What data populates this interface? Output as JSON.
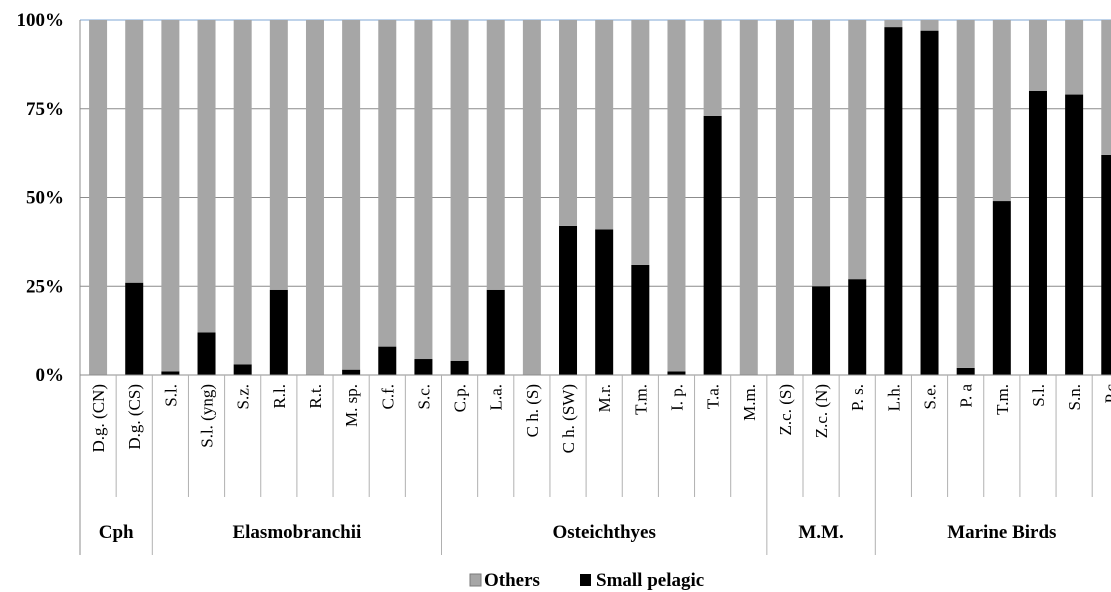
{
  "chart_data": {
    "type": "bar",
    "stacked": true,
    "percent": true,
    "title": "",
    "xlabel": "",
    "ylabel": "",
    "ylim": [
      0,
      100
    ],
    "y_ticks": [
      "0%",
      "25%",
      "50%",
      "75%",
      "100%"
    ],
    "grid": true,
    "legend_position": "bottom",
    "categories": [
      "D.g. (CN)",
      "D.g. (CS)",
      "S.l.",
      "S.l. (yng)",
      "S.z.",
      "R.l.",
      "R.t.",
      "M. sp.",
      "C.f.",
      "S.c.",
      "C.p.",
      "L.a.",
      "C h. (S)",
      "C h. (SW)",
      "M.r.",
      "T.m.",
      "I. p.",
      "T.a.",
      "M.m.",
      "Z.c. (S)",
      "Z.c. (N)",
      "P. s.",
      "L.h.",
      "S.e.",
      "P. a",
      "T.m.",
      "S.l.",
      "S.n.",
      "P.c"
    ],
    "groups": [
      {
        "label": "Cph",
        "count": 2
      },
      {
        "label": "Elasmobranchii",
        "count": 8
      },
      {
        "label": "Osteichthyes",
        "count": 9
      },
      {
        "label": "M.M.",
        "count": 3
      },
      {
        "label": "Marine Birds",
        "count": 7
      }
    ],
    "series": [
      {
        "name": "Small pelagic",
        "color": "#000000",
        "values": [
          0,
          26,
          1,
          12,
          3,
          24,
          0,
          1.5,
          8,
          4.5,
          4,
          24,
          0,
          42,
          41,
          31,
          1,
          73,
          0,
          0,
          25,
          27,
          98,
          97,
          2,
          49,
          80,
          79,
          62
        ]
      },
      {
        "name": "Others",
        "color": "#a6a6a6",
        "values": [
          100,
          74,
          99,
          88,
          97,
          76,
          100,
          98.5,
          92,
          95.5,
          96,
          76,
          100,
          58,
          59,
          69,
          99,
          27,
          100,
          100,
          75,
          73,
          2,
          3,
          98,
          51,
          20,
          21,
          38
        ]
      }
    ],
    "legend": [
      "Others",
      "Small pelagic"
    ]
  }
}
